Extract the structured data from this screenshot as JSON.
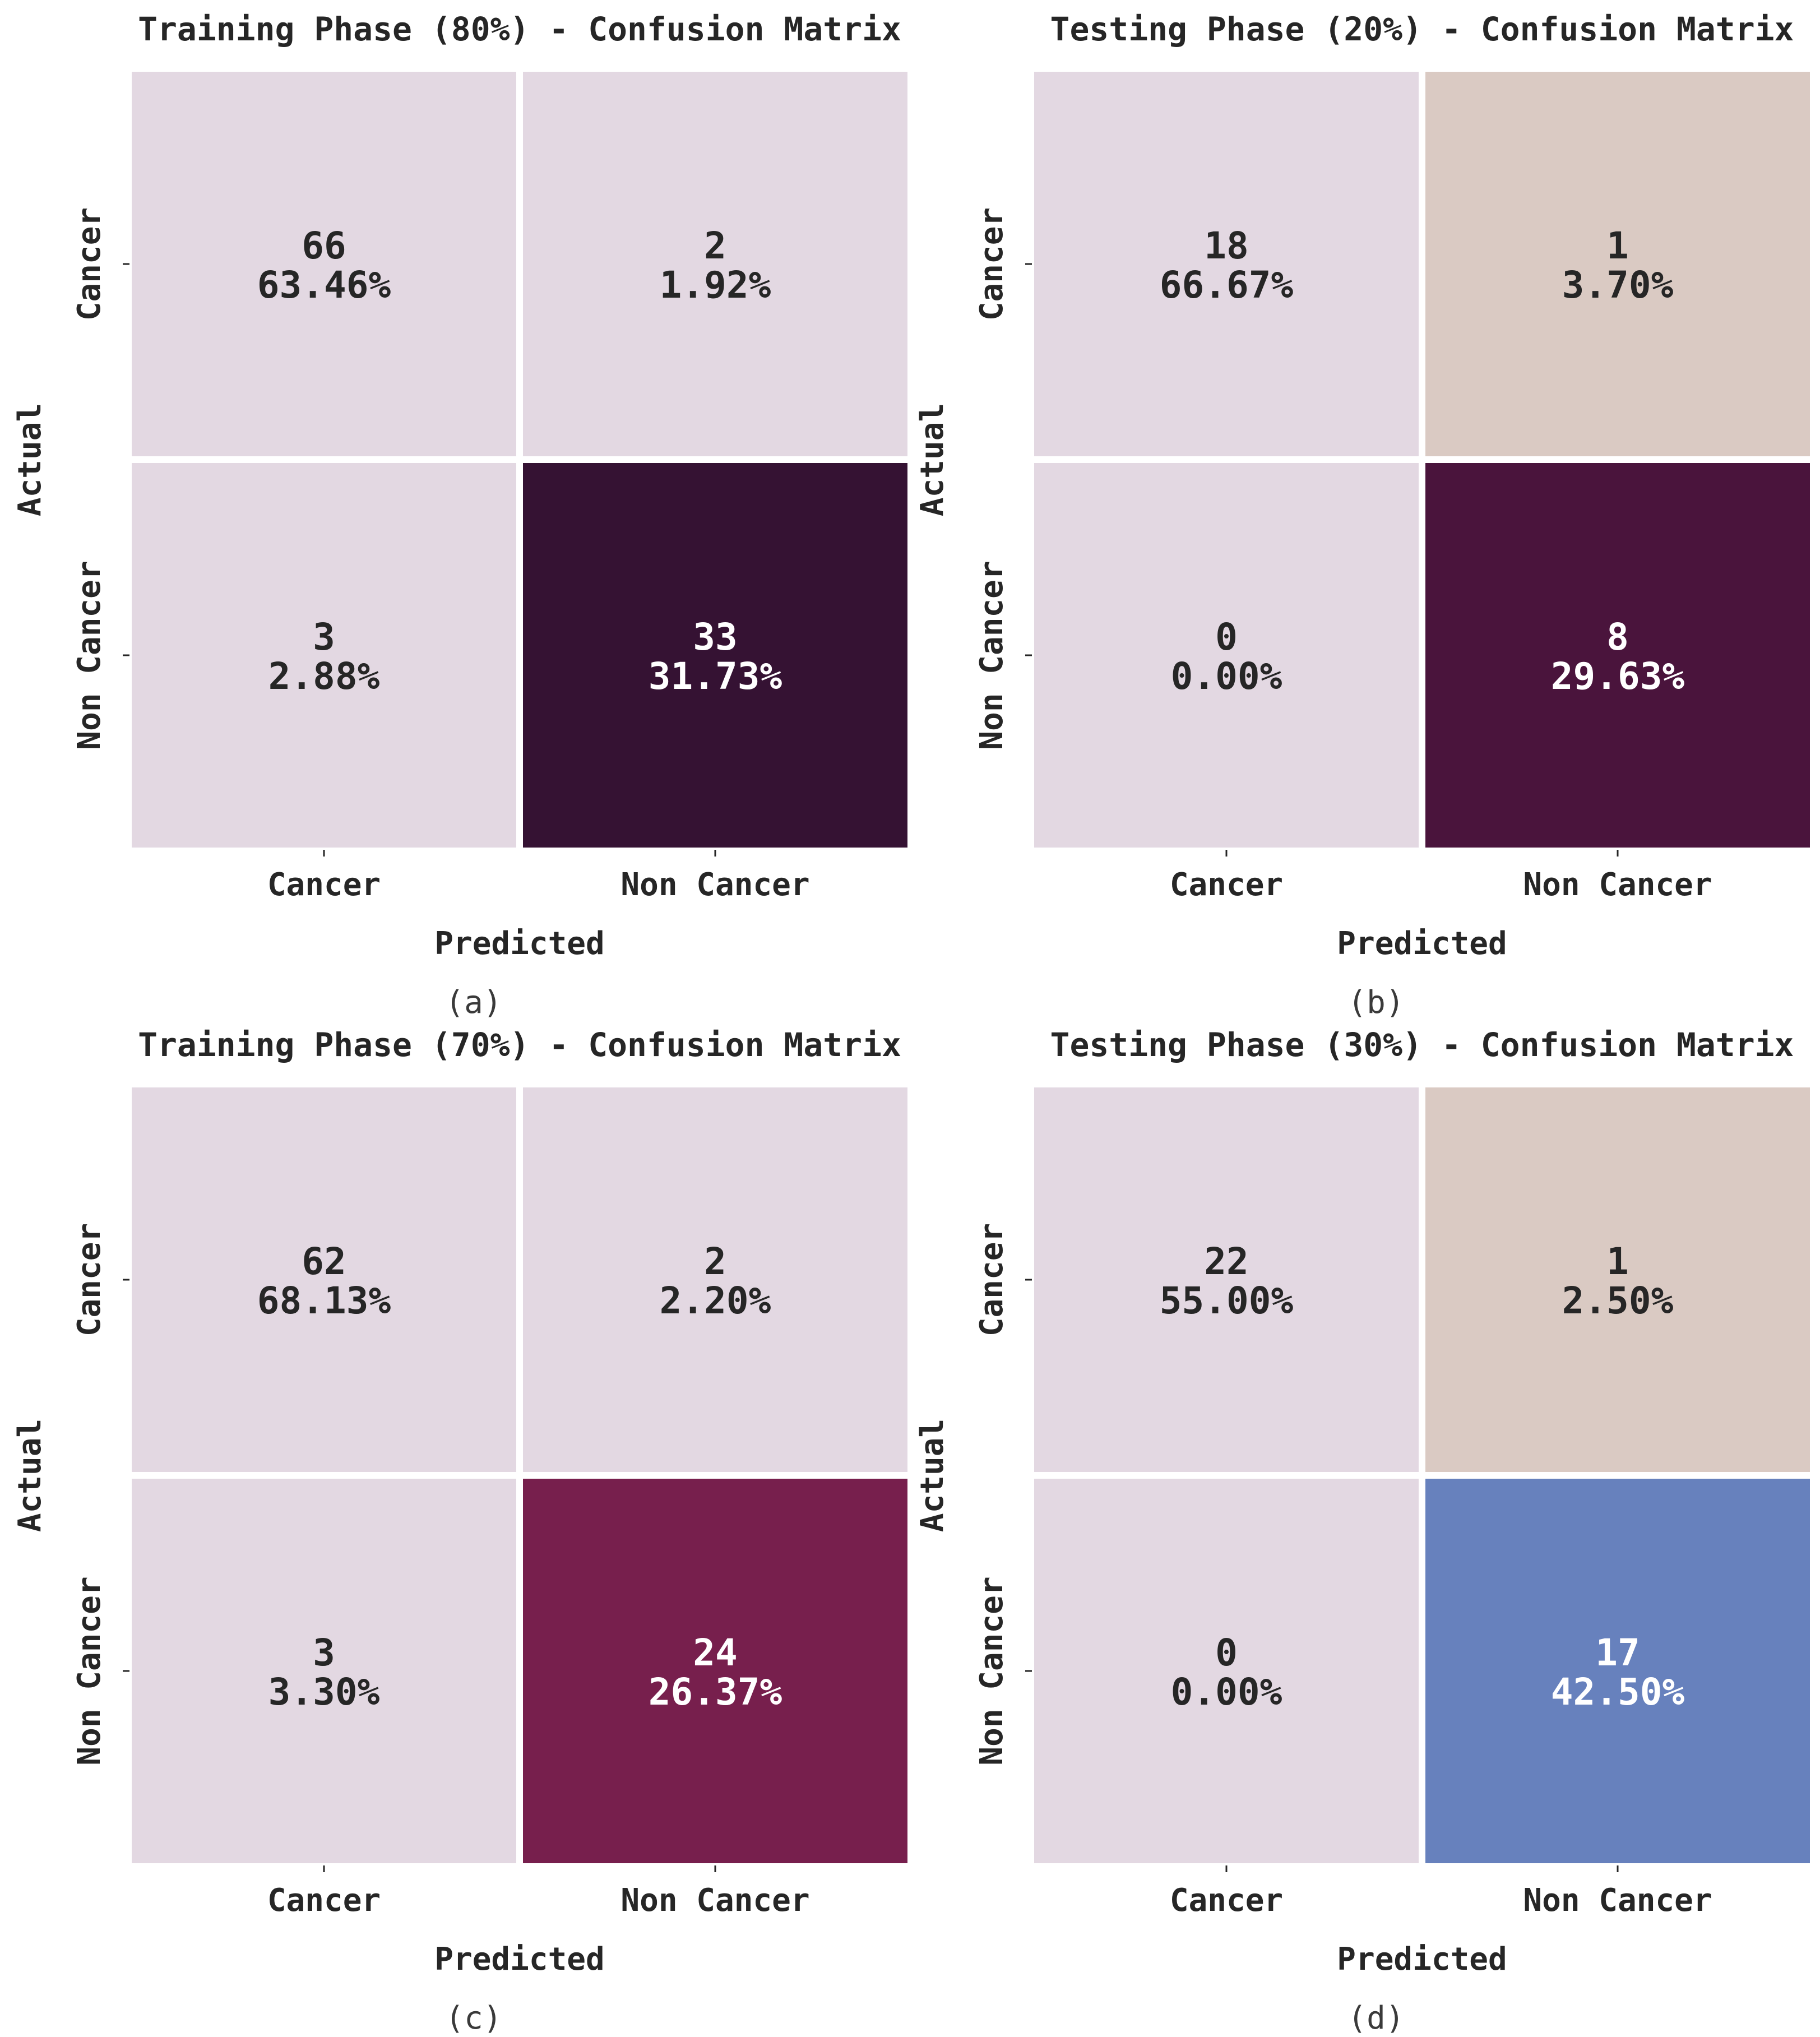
{
  "chart_data": [
    {
      "type": "heatmap",
      "title": "Training Phase (80%) - Confusion Matrix",
      "caption": "(a)",
      "xlabel": "Predicted",
      "ylabel": "Actual",
      "x_categories": [
        "Cancer",
        "Non Cancer"
      ],
      "y_categories": [
        "Cancer",
        "Non Cancer"
      ],
      "cells": [
        {
          "count": "66",
          "percent": "63.46%",
          "color": "#e3d8e2",
          "text_color": "#262626"
        },
        {
          "count": "2",
          "percent": "1.92%",
          "color": "#e3d8e2",
          "text_color": "#262626"
        },
        {
          "count": "3",
          "percent": "2.88%",
          "color": "#e3d8e2",
          "text_color": "#262626"
        },
        {
          "count": "33",
          "percent": "31.73%",
          "color": "#351233",
          "text_color": "#ffffff"
        }
      ]
    },
    {
      "type": "heatmap",
      "title": "Testing Phase (20%) - Confusion Matrix",
      "caption": "(b)",
      "xlabel": "Predicted",
      "ylabel": "Actual",
      "x_categories": [
        "Cancer",
        "Non Cancer"
      ],
      "y_categories": [
        "Cancer",
        "Non Cancer"
      ],
      "cells": [
        {
          "count": "18",
          "percent": "66.67%",
          "color": "#e3d8e2",
          "text_color": "#262626"
        },
        {
          "count": "1",
          "percent": "3.70%",
          "color": "#dacac3",
          "text_color": "#262626"
        },
        {
          "count": "0",
          "percent": "0.00%",
          "color": "#e3d8e2",
          "text_color": "#262626"
        },
        {
          "count": "8",
          "percent": "29.63%",
          "color": "#4a143c",
          "text_color": "#ffffff"
        }
      ]
    },
    {
      "type": "heatmap",
      "title": "Training Phase (70%) - Confusion Matrix",
      "caption": "(c)",
      "xlabel": "Predicted",
      "ylabel": "Actual",
      "x_categories": [
        "Cancer",
        "Non Cancer"
      ],
      "y_categories": [
        "Cancer",
        "Non Cancer"
      ],
      "cells": [
        {
          "count": "62",
          "percent": "68.13%",
          "color": "#e3d8e2",
          "text_color": "#262626"
        },
        {
          "count": "2",
          "percent": "2.20%",
          "color": "#e3d8e2",
          "text_color": "#262626"
        },
        {
          "count": "3",
          "percent": "3.30%",
          "color": "#e3d8e2",
          "text_color": "#262626"
        },
        {
          "count": "24",
          "percent": "26.37%",
          "color": "#771f4d",
          "text_color": "#ffffff"
        }
      ]
    },
    {
      "type": "heatmap",
      "title": "Testing Phase (30%) - Confusion Matrix",
      "caption": "(d)",
      "xlabel": "Predicted",
      "ylabel": "Actual",
      "x_categories": [
        "Cancer",
        "Non Cancer"
      ],
      "y_categories": [
        "Cancer",
        "Non Cancer"
      ],
      "cells": [
        {
          "count": "22",
          "percent": "55.00%",
          "color": "#e3d8e2",
          "text_color": "#262626"
        },
        {
          "count": "1",
          "percent": "2.50%",
          "color": "#dacac3",
          "text_color": "#262626"
        },
        {
          "count": "0",
          "percent": "0.00%",
          "color": "#e3d8e2",
          "text_color": "#262626"
        },
        {
          "count": "17",
          "percent": "42.50%",
          "color": "#6781bd",
          "text_color": "#ffffff"
        }
      ]
    }
  ]
}
